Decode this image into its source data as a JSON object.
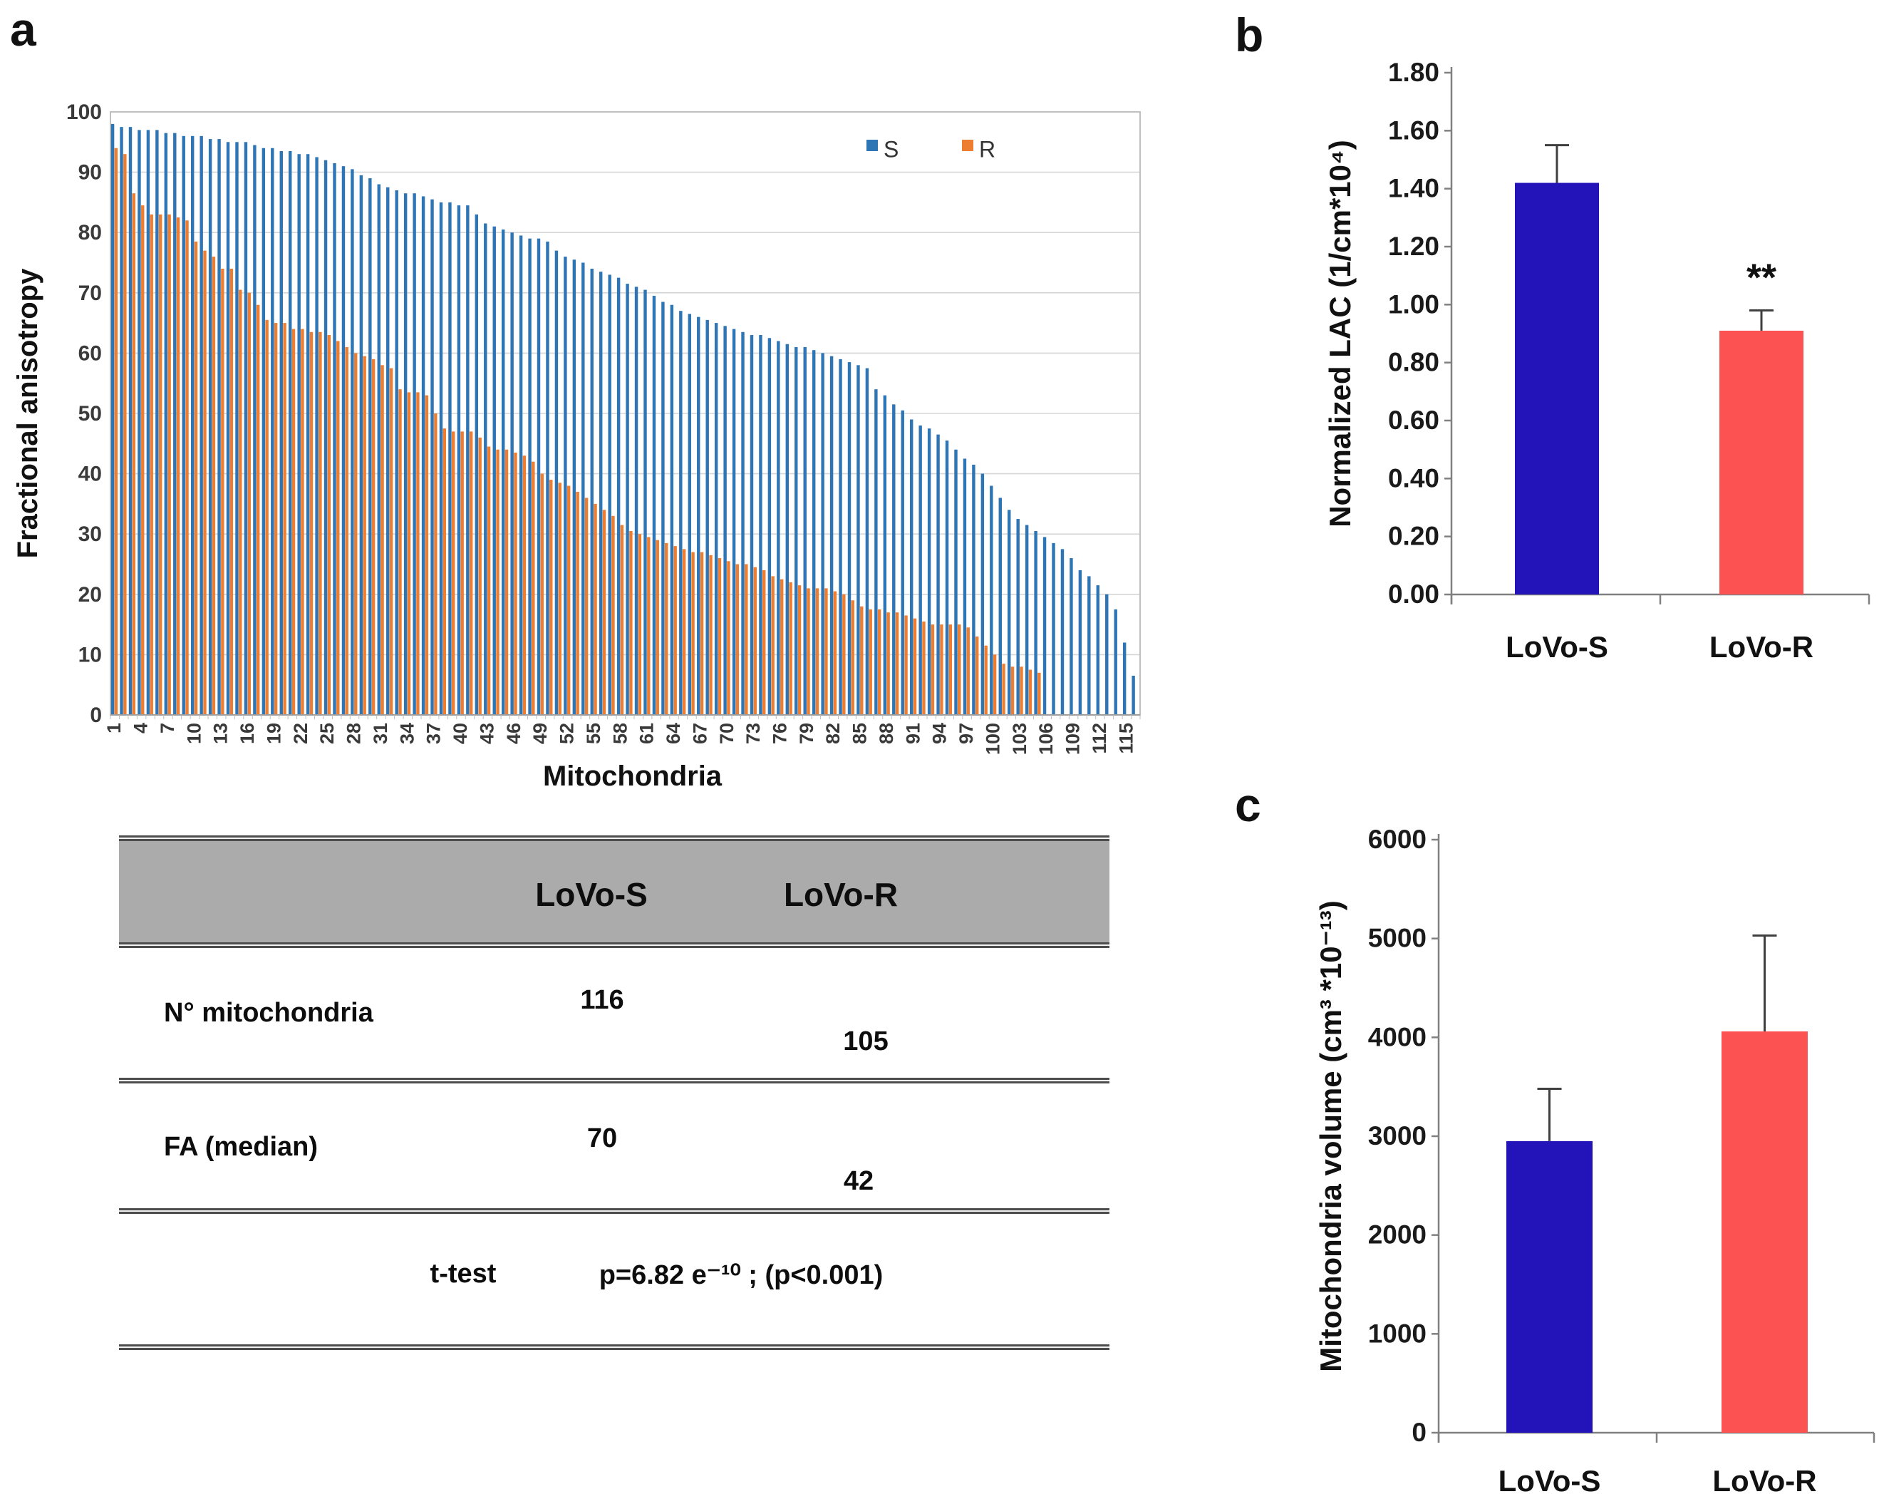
{
  "figure": {
    "panel_a_label": "a",
    "panel_b_label": "b",
    "panel_c_label": "c"
  },
  "panel_a": {
    "table": {
      "header_lovo_s": "LoVo-S",
      "header_lovo_r": "LoVo-R",
      "rows": [
        {
          "label": "N° mitochondria",
          "lovo_s": "116",
          "lovo_r": "105"
        },
        {
          "label": "FA (median)",
          "lovo_s": "70",
          "lovo_r": "42"
        },
        {
          "label": "t-test",
          "value": "p=6.82 e⁻¹⁰ ; (p<0.001)"
        }
      ]
    }
  },
  "chart_data": [
    {
      "id": "fractional-anisotropy-distribution",
      "type": "bar",
      "title": "",
      "xlabel": "Mitochondria",
      "ylabel": "Fractional anisotropy",
      "ylim": [
        0,
        100
      ],
      "ytick_step": 10,
      "grid": true,
      "legend_position": "top-right-inside",
      "layout_note": "clustered thin columns, one cluster per mitochondrion index, both series sorted descending",
      "xtick_labels": [
        "1",
        "4",
        "7",
        "10",
        "13",
        "16",
        "19",
        "22",
        "25",
        "28",
        "31",
        "34",
        "37",
        "40",
        "43",
        "46",
        "49",
        "52",
        "55",
        "58",
        "61",
        "64",
        "67",
        "70",
        "73",
        "76",
        "79",
        "82",
        "85",
        "88",
        "91",
        "94",
        "97",
        "100",
        "103",
        "106",
        "109",
        "112",
        "115"
      ],
      "series": [
        {
          "name": "S",
          "color": "#2E75B6",
          "n": 116,
          "values": [
            98,
            97.5,
            97.5,
            97,
            97,
            97,
            96.5,
            96.5,
            96,
            96,
            96,
            95.5,
            95.5,
            95,
            95,
            95,
            94.5,
            94,
            94,
            93.5,
            93.5,
            93,
            93,
            92.5,
            92,
            91.5,
            91,
            90.5,
            89.5,
            89,
            88,
            87.5,
            87,
            86.5,
            86.5,
            86,
            85.5,
            85,
            85,
            84.5,
            84.5,
            83,
            81.5,
            81,
            80.5,
            80,
            79.5,
            79,
            79,
            78.5,
            77,
            76,
            75.5,
            75,
            74,
            73.5,
            73,
            72.5,
            71.5,
            71,
            70.5,
            69.5,
            68.5,
            68,
            67,
            66.5,
            66,
            65.5,
            65,
            64.5,
            64,
            63.5,
            63,
            63,
            62.5,
            62,
            61.5,
            61,
            61,
            60.5,
            60,
            59.5,
            59,
            58.5,
            58,
            57.5,
            54,
            53,
            51.5,
            50.5,
            49,
            48,
            47.5,
            46.5,
            45.5,
            44,
            42.5,
            41.5,
            40,
            38,
            36,
            34,
            32.5,
            31.5,
            30.5,
            29.5,
            28.5,
            27.5,
            26,
            24,
            23,
            21.5,
            20,
            17.5,
            12,
            6.5
          ]
        },
        {
          "name": "R",
          "color": "#ED7D31",
          "n": 105,
          "values": [
            94,
            93,
            86.5,
            84.5,
            83,
            83,
            83,
            82.5,
            82,
            78.5,
            77,
            76,
            74,
            74,
            70.5,
            70,
            68,
            65.5,
            65,
            65,
            64,
            64,
            63.5,
            63.5,
            63,
            62,
            61,
            60,
            59.5,
            59,
            58,
            57.5,
            54,
            53.5,
            53.5,
            53,
            50,
            47.5,
            47,
            47,
            47,
            46,
            44.5,
            44,
            44,
            43.5,
            43,
            42,
            40,
            39,
            38.5,
            38,
            37,
            36,
            35,
            34,
            33,
            31.5,
            30.5,
            30,
            29.5,
            29,
            28.5,
            28,
            27.5,
            27,
            27,
            26.5,
            26,
            25.5,
            25,
            25,
            24.5,
            24,
            23,
            22.5,
            22,
            21.5,
            21,
            21,
            21,
            20.5,
            20,
            19,
            18,
            17.5,
            17.5,
            17,
            17,
            16.5,
            16,
            15.5,
            15,
            15,
            15,
            15,
            14.5,
            13,
            11.5,
            10,
            8.5,
            8,
            8,
            7.5,
            7
          ]
        }
      ]
    },
    {
      "id": "normalized-lac",
      "type": "bar",
      "title": "",
      "xlabel": "",
      "ylabel": "Normalized LAC (1/cm*10⁴)",
      "categories": [
        "LoVo-S",
        "LoVo-R"
      ],
      "values": [
        1.42,
        0.91
      ],
      "error_upper": [
        1.55,
        0.98
      ],
      "bar_colors": [
        "#2214B8",
        "#FC5252"
      ],
      "ylim": [
        0,
        1.8
      ],
      "ytick_step": 0.2,
      "ytick_decimals": 2,
      "grid": false,
      "annotations": [
        {
          "text": "**",
          "category": "LoVo-R"
        }
      ]
    },
    {
      "id": "mitochondria-volume",
      "type": "bar",
      "title": "",
      "xlabel": "",
      "ylabel": "Mitochondria volume (cm³ *10⁻¹³)",
      "categories": [
        "LoVo-S",
        "LoVo-R"
      ],
      "values": [
        2950,
        4060
      ],
      "error_upper": [
        3480,
        5030
      ],
      "bar_colors": [
        "#2214B8",
        "#FC5252"
      ],
      "ylim": [
        0,
        6000
      ],
      "ytick_step": 1000,
      "ytick_decimals": 0,
      "grid": false,
      "annotations": []
    }
  ]
}
